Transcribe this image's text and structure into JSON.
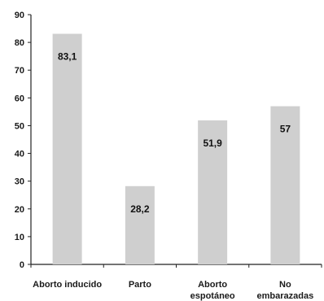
{
  "chart_data": {
    "type": "bar",
    "categories": [
      [
        "Aborto inducido"
      ],
      [
        "Parto"
      ],
      [
        "Aborto",
        "espotáneo"
      ],
      [
        "No",
        "embarazadas"
      ]
    ],
    "values": [
      83.1,
      28.2,
      51.9,
      57
    ],
    "data_labels": [
      "83,1",
      "28,2",
      "51,9",
      "57"
    ],
    "ylim": [
      0,
      90
    ],
    "yticks": [
      0,
      10,
      20,
      30,
      40,
      50,
      60,
      70,
      80,
      90
    ],
    "title": "",
    "xlabel": "",
    "ylabel": "",
    "grid": false,
    "bar_color": "#cfcfcf",
    "axis_color": "#222222"
  }
}
